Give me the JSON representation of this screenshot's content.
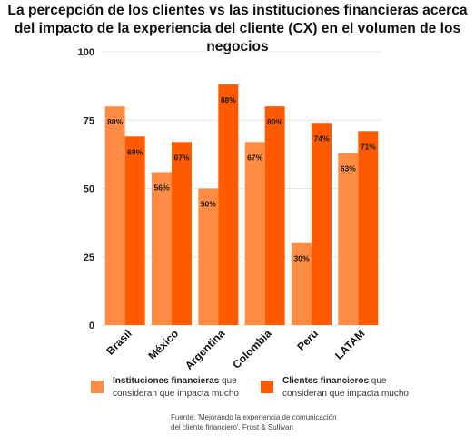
{
  "title": "La percepción de los clientes vs las instituciones financieras acerca del impacto de la experiencia del cliente (CX) en el volumen de los negocios",
  "chart_data": {
    "type": "bar",
    "title": "La percepción de los clientes vs las instituciones financieras acerca del impacto de la experiencia del cliente (CX) en el volumen de los negocios",
    "categories": [
      "Brasil",
      "México",
      "Argentina",
      "Colombia",
      "Perú",
      "LATAM"
    ],
    "series": [
      {
        "name": "Instituciones financieras que consideran que impacta mucho",
        "values": [
          80,
          56,
          50,
          67,
          30,
          63
        ],
        "labels": [
          "80%",
          "56%",
          "50%",
          "67%",
          "30%",
          "63%"
        ],
        "color": "#ff8c45"
      },
      {
        "name": "Clientes financieros que consideran que impacta mucho",
        "values": [
          69,
          67,
          88,
          80,
          74,
          71
        ],
        "labels": [
          "69%",
          "67%",
          "88%",
          "80%",
          "74%",
          "71%"
        ],
        "color": "#ff5a00"
      }
    ],
    "ylim": [
      0,
      100
    ],
    "yticks": [
      "0",
      "25",
      "50",
      "75",
      "100"
    ],
    "grid": true,
    "legend": "bottom"
  },
  "legend": {
    "item1": {
      "bold": "Instituciones financieras",
      "rest_line1": " que",
      "line2": "consideran que impacta mucho"
    },
    "item2": {
      "bold": "Clientes financieros",
      "rest_line1": " que",
      "line2": "consideran que impacta mucho"
    }
  },
  "source": {
    "line1": "Fuente: 'Mejorando la experiencia de comunicación",
    "line2": "del cliente financiero', Frost & Sullivan"
  }
}
